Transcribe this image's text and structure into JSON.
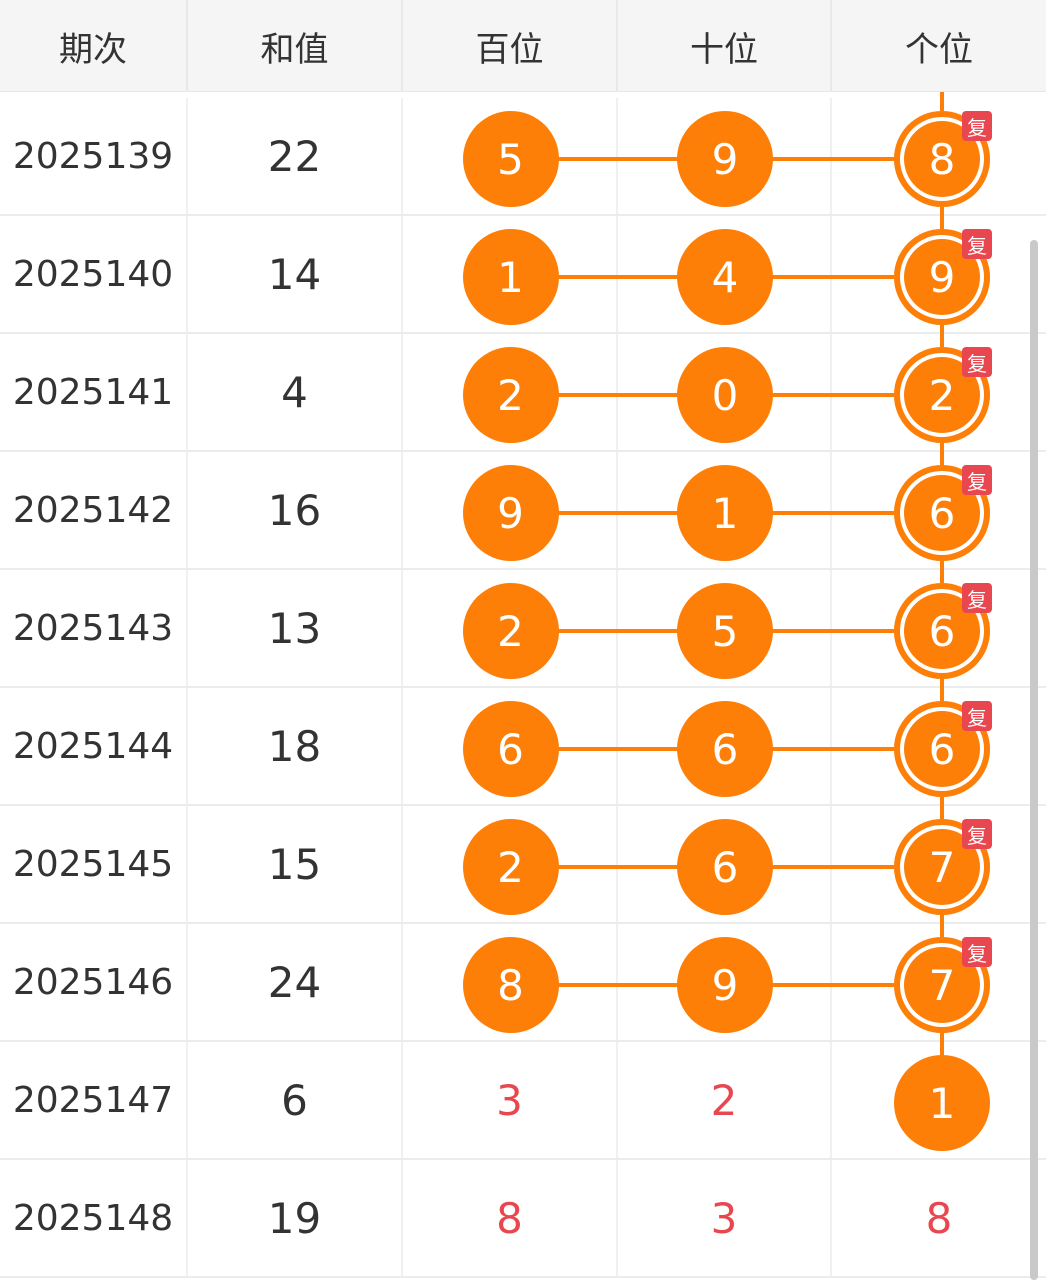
{
  "header": {
    "period": "期次",
    "sum": "和值",
    "hundreds": "百位",
    "tens": "十位",
    "units": "个位"
  },
  "repeat_tag": "复",
  "colors": {
    "ball": "#fd7f07",
    "tag": "#e8474f",
    "plain_number": "#e8474f"
  },
  "rows": [
    {
      "period": "2025139",
      "sum": "22",
      "hundreds": "5",
      "tens": "9",
      "units": "8",
      "ball": true,
      "repeat": true
    },
    {
      "period": "2025140",
      "sum": "14",
      "hundreds": "1",
      "tens": "4",
      "units": "9",
      "ball": true,
      "repeat": true
    },
    {
      "period": "2025141",
      "sum": "4",
      "hundreds": "2",
      "tens": "0",
      "units": "2",
      "ball": true,
      "repeat": true
    },
    {
      "period": "2025142",
      "sum": "16",
      "hundreds": "9",
      "tens": "1",
      "units": "6",
      "ball": true,
      "repeat": true
    },
    {
      "period": "2025143",
      "sum": "13",
      "hundreds": "2",
      "tens": "5",
      "units": "6",
      "ball": true,
      "repeat": true
    },
    {
      "period": "2025144",
      "sum": "18",
      "hundreds": "6",
      "tens": "6",
      "units": "6",
      "ball": true,
      "repeat": true
    },
    {
      "period": "2025145",
      "sum": "15",
      "hundreds": "2",
      "tens": "6",
      "units": "7",
      "ball": true,
      "repeat": true
    },
    {
      "period": "2025146",
      "sum": "24",
      "hundreds": "8",
      "tens": "9",
      "units": "7",
      "ball": true,
      "repeat": true
    },
    {
      "period": "2025147",
      "sum": "6",
      "hundreds": "3",
      "tens": "2",
      "units": "1",
      "ball": false,
      "unitsBall": true,
      "repeat": false
    },
    {
      "period": "2025148",
      "sum": "19",
      "hundreds": "8",
      "tens": "3",
      "units": "8",
      "ball": false,
      "unitsBall": false,
      "repeat": false
    }
  ]
}
